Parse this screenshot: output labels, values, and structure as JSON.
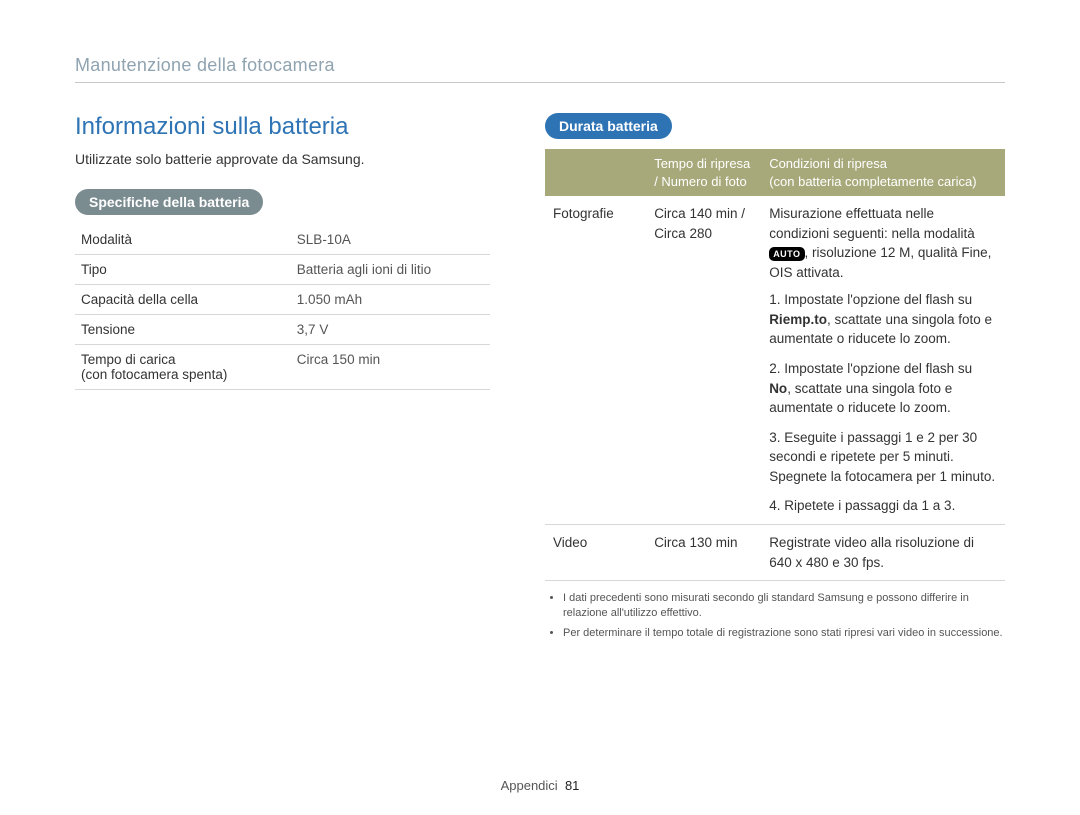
{
  "header": {
    "breadcrumb": "Manutenzione della fotocamera"
  },
  "left": {
    "title": "Informazioni sulla batteria",
    "intro": "Utilizzate solo batterie approvate da Samsung.",
    "spec_pill": "Specifiche della batteria",
    "spec_rows": [
      {
        "label": "Modalità",
        "value": "SLB-10A"
      },
      {
        "label": "Tipo",
        "value": "Batteria agli ioni di litio"
      },
      {
        "label": "Capacità della cella",
        "value": "1.050 mAh"
      },
      {
        "label": "Tensione",
        "value": "3,7 V"
      },
      {
        "label": "Tempo di carica\n(con fotocamera spenta)",
        "value": "Circa 150 min"
      }
    ]
  },
  "right": {
    "life_pill": "Durata batteria",
    "head_col1": "Tempo di ripresa / Numero di foto",
    "head_col2": "Condizioni di ripresa\n(con batteria completamente carica)",
    "foto_label": "Fotografie",
    "foto_time": "Circa 140 min / Circa 280",
    "foto_cond_lead_a": "Misurazione effettuata nelle condizioni seguenti: nella modalità ",
    "foto_cond_lead_b": ", risoluzione 12 M, qualità Fine, OIS attivata.",
    "auto_badge": "AUTO",
    "foto_step1_a": "1. Impostate l'opzione del flash su ",
    "foto_step1_b": "Riemp.to",
    "foto_step1_c": ", scattate una singola foto e aumentate o riducete lo zoom.",
    "foto_step2_a": "2. Impostate l'opzione del flash su ",
    "foto_step2_b": "No",
    "foto_step2_c": ", scattate una singola foto e aumentate o riducete lo zoom.",
    "foto_step3": "3. Eseguite i passaggi 1 e 2 per 30 secondi e ripetete per 5 minuti. Spegnete la fotocamera per 1 minuto.",
    "foto_step4": "4. Ripetete i passaggi da 1 a 3.",
    "video_label": "Video",
    "video_time": "Circa 130 min",
    "video_cond": "Registrate video alla risoluzione di 640 x 480 e 30 fps.",
    "notes": [
      "I dati precedenti sono misurati secondo gli standard Samsung e possono differire in relazione all'utilizzo effettivo.",
      "Per determinare il tempo totale di registrazione sono stati ripresi vari video in successione."
    ]
  },
  "footer": {
    "section": "Appendici",
    "page": "81"
  },
  "colors": {
    "breadcrumb": "#8fa3b0",
    "title": "#2e74b5",
    "pill_gray": "#7b8c91",
    "pill_blue": "#2e74b5",
    "table_header": "#a7a97a",
    "border": "#d8d8d8"
  }
}
